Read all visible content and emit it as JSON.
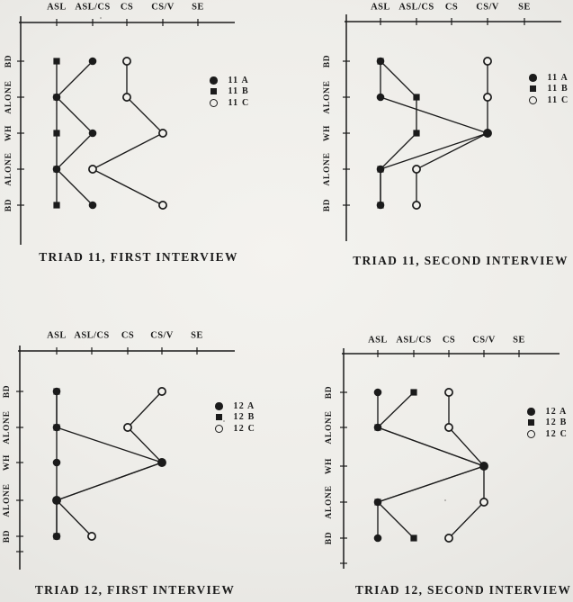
{
  "colors": {
    "ink": "#1b1b1b",
    "paper": "#f2f1ed"
  },
  "chart_data": [
    {
      "type": "line",
      "title": "TRIAD 11, FIRST INTERVIEW",
      "x_axis_side": "top",
      "x_categories": [
        "ASL",
        "ASL/CS",
        "CS",
        "CS/V",
        "SE"
      ],
      "y_categories": [
        "BD",
        "ALONE",
        "WH",
        "ALONE",
        "BD"
      ],
      "legend_position": "right",
      "series": [
        {
          "name": "11 A",
          "marker": "filled-circle",
          "values": [
            "ASL/CS",
            "ASL",
            "ASL/CS",
            "ASL",
            "ASL/CS"
          ]
        },
        {
          "name": "11 B",
          "marker": "filled-square",
          "values": [
            "ASL",
            "ASL",
            "ASL",
            "ASL",
            "ASL"
          ]
        },
        {
          "name": "11 C",
          "marker": "open-circle",
          "values": [
            "CS",
            "CS",
            "CS/V",
            "ASL/CS",
            "CS/V"
          ]
        }
      ]
    },
    {
      "type": "line",
      "title": "TRIAD 11, SECOND INTERVIEW",
      "x_axis_side": "top",
      "x_categories": [
        "ASL",
        "ASL/CS",
        "CS",
        "CS/V",
        "SE"
      ],
      "y_categories": [
        "BD",
        "ALONE",
        "WH",
        "ALONE",
        "BD"
      ],
      "legend_position": "right",
      "series": [
        {
          "name": "11 A",
          "marker": "filled-circle",
          "values": [
            "ASL",
            "ASL",
            "CS/V",
            "ASL",
            "ASL"
          ]
        },
        {
          "name": "11 B",
          "marker": "filled-square",
          "values": [
            "ASL",
            "ASL/CS",
            "ASL/CS",
            "ASL",
            "ASL"
          ]
        },
        {
          "name": "11 C",
          "marker": "open-circle",
          "values": [
            "CS/V",
            "CS/V",
            "CS/V",
            "ASL/CS",
            "ASL/CS"
          ]
        }
      ]
    },
    {
      "type": "line",
      "title": "TRIAD 12, FIRST INTERVIEW",
      "x_axis_side": "top",
      "x_categories": [
        "ASL",
        "ASL/CS",
        "CS",
        "CS/V",
        "SE"
      ],
      "y_categories": [
        "BD",
        "ALONE",
        "WH",
        "ALONE",
        "BD"
      ],
      "legend_position": "right",
      "series": [
        {
          "name": "12 A",
          "marker": "filled-circle",
          "values": [
            "ASL",
            "ASL",
            "ASL",
            "ASL",
            "ASL"
          ]
        },
        {
          "name": "12 B",
          "marker": "filled-square",
          "values": [
            "ASL",
            "ASL",
            "CS/V",
            "ASL",
            "ASL"
          ]
        },
        {
          "name": "12 C",
          "marker": "open-circle",
          "values": [
            "CS/V",
            "CS",
            "CS/V",
            "ASL",
            "ASL/CS"
          ]
        }
      ]
    },
    {
      "type": "line",
      "title": "TRIAD 12, SECOND INTERVIEW",
      "x_axis_side": "top",
      "x_categories": [
        "ASL",
        "ASL/CS",
        "CS",
        "CS/V",
        "SE"
      ],
      "y_categories": [
        "BD",
        "ALONE",
        "WH",
        "ALONE",
        "BD"
      ],
      "legend_position": "right",
      "series": [
        {
          "name": "12 A",
          "marker": "filled-circle",
          "values": [
            "ASL",
            "ASL",
            "CS/V",
            "ASL",
            "ASL"
          ]
        },
        {
          "name": "12 B",
          "marker": "filled-square",
          "values": [
            "ASL/CS",
            "ASL",
            "CS/V",
            "ASL",
            "ASL/CS"
          ]
        },
        {
          "name": "12 C",
          "marker": "open-circle",
          "values": [
            "CS",
            "CS",
            "CS/V",
            "CS/V",
            "CS"
          ]
        }
      ]
    }
  ]
}
